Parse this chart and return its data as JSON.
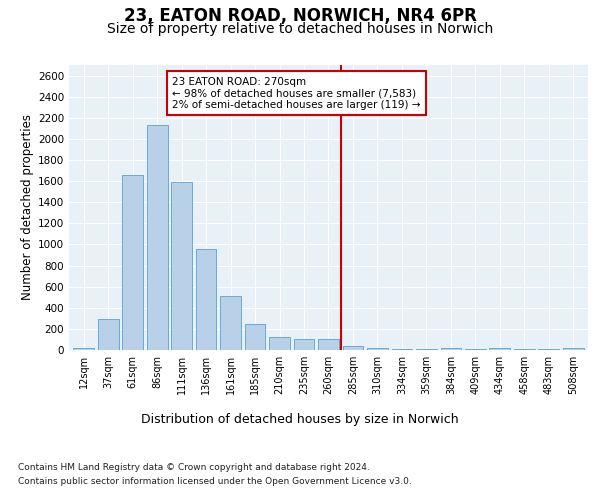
{
  "title": "23, EATON ROAD, NORWICH, NR4 6PR",
  "subtitle": "Size of property relative to detached houses in Norwich",
  "xlabel": "Distribution of detached houses by size in Norwich",
  "ylabel": "Number of detached properties",
  "footnote1": "Contains HM Land Registry data © Crown copyright and database right 2024.",
  "footnote2": "Contains public sector information licensed under the Open Government Licence v3.0.",
  "annotation_line1": "23 EATON ROAD: 270sqm",
  "annotation_line2": "← 98% of detached houses are smaller (7,583)",
  "annotation_line3": "2% of semi-detached houses are larger (119) →",
  "bin_labels": [
    "12sqm",
    "37sqm",
    "61sqm",
    "86sqm",
    "111sqm",
    "136sqm",
    "161sqm",
    "185sqm",
    "210sqm",
    "235sqm",
    "260sqm",
    "285sqm",
    "310sqm",
    "334sqm",
    "359sqm",
    "384sqm",
    "409sqm",
    "434sqm",
    "458sqm",
    "483sqm",
    "508sqm"
  ],
  "bar_values": [
    20,
    295,
    1660,
    2130,
    1590,
    960,
    510,
    245,
    120,
    100,
    100,
    40,
    15,
    10,
    8,
    20,
    5,
    18,
    5,
    5,
    18
  ],
  "bar_color": "#b8d0e8",
  "bar_edge_color": "#6aaad4",
  "vline_color": "#cc0000",
  "vline_x_index": 10.5,
  "ylim": [
    0,
    2700
  ],
  "yticks": [
    0,
    200,
    400,
    600,
    800,
    1000,
    1200,
    1400,
    1600,
    1800,
    2000,
    2200,
    2400,
    2600
  ],
  "plot_bg_color": "#e8f0f8",
  "grid_color": "#ffffff",
  "annotation_box_color": "#cc0000",
  "title_fontsize": 12,
  "subtitle_fontsize": 10,
  "axis_label_fontsize": 9,
  "tick_fontsize": 7,
  "ylabel_fontsize": 8.5
}
